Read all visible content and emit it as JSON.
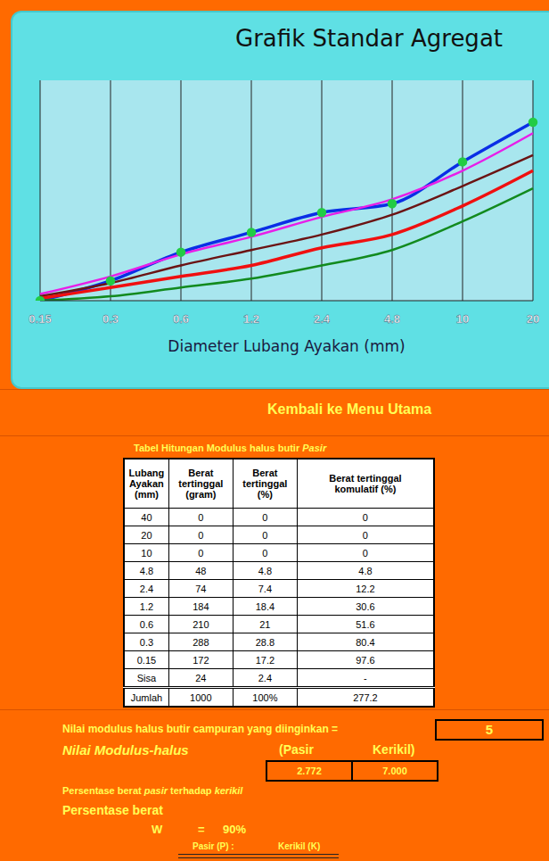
{
  "chart_data": {
    "type": "line",
    "title": "Grafik Standar Agregat",
    "x_label": "Diameter Lubang Ayakan (mm)",
    "categories": [
      "0.15",
      "0.3",
      "0.6",
      "1.2",
      "2.4",
      "4.8",
      "10",
      "20"
    ],
    "series": [
      {
        "color": "#0a2ee6",
        "marker": "circle",
        "values": [
          0,
          9,
          22,
          31,
          40,
          44,
          63,
          81
        ]
      },
      {
        "color": "#e81ee8",
        "values": [
          3,
          11,
          21,
          29,
          38,
          46,
          59,
          76
        ]
      },
      {
        "color": "#6b1414",
        "values": [
          2,
          8,
          16,
          23,
          30,
          39,
          52,
          66
        ]
      },
      {
        "color": "#f01010",
        "values": [
          1,
          6,
          11,
          16,
          24,
          30,
          43,
          59
        ]
      },
      {
        "color": "#128a1e",
        "values": [
          0,
          2,
          6,
          10,
          16,
          23,
          36,
          51
        ]
      }
    ],
    "ylim": [
      0,
      100
    ],
    "yticks": [
      0,
      20,
      40,
      60,
      80,
      100
    ],
    "grid": true,
    "tick_labels": "x"
  },
  "menu_link": "Kembali ke Menu Utama",
  "table": {
    "title": [
      "Tabel Hitungan Modulus halus butir",
      "Pasir"
    ],
    "header": [
      "Lubang Ayakan (mm)",
      "Berat tertinggal (gram)",
      "Berat tertinggal (%)",
      "Berat tertinggal komulatif (%)"
    ],
    "rows": [
      [
        40,
        0,
        0,
        0
      ],
      [
        20,
        0,
        0,
        0
      ],
      [
        10,
        0,
        0,
        0
      ],
      [
        4.8,
        48,
        4.8,
        4.8
      ],
      [
        2.4,
        74,
        7.4,
        12.2
      ],
      [
        1.2,
        184,
        18.4,
        30.6
      ],
      [
        0.6,
        210,
        21,
        51.6
      ],
      [
        0.3,
        288,
        28.8,
        80.4
      ],
      [
        0.15,
        172,
        17.2,
        97.6
      ],
      [
        "Sisa",
        24,
        2.4,
        "-"
      ]
    ],
    "total": [
      "Jumlah",
      1000,
      "100%",
      277.2
    ]
  },
  "target": {
    "label": "Nilai modulus halus butir campuran yang diinginkan  =",
    "value": 5
  },
  "modulus": {
    "label": "Nilai Modulus-halus",
    "columns": [
      "(Pasir",
      "Kerikil)"
    ],
    "values": [
      "2.772",
      "7.000"
    ]
  },
  "ratio_heading": [
    "Persentase berat",
    "pasir",
    "terhadap",
    "kerikil"
  ],
  "percent_heading": "Persentase berat",
  "w_line": [
    "W",
    "=",
    "90%"
  ],
  "ratio_labels": [
    "Pasir (P) :",
    "Kerikil (K)"
  ]
}
